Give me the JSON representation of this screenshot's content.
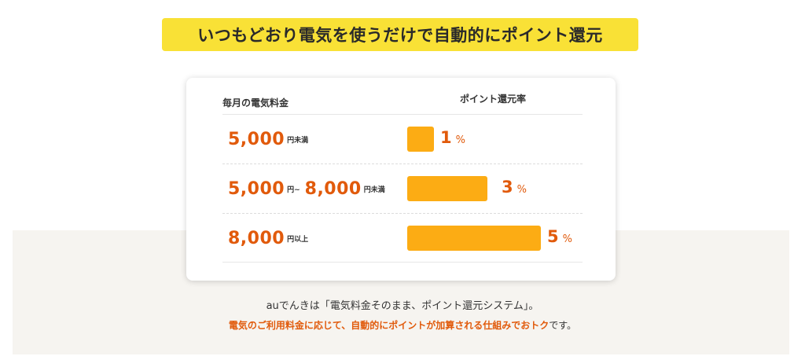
{
  "headline": "いつもどおり電気を使うだけで自動的にポイント還元",
  "table": {
    "col_fee": "毎月の電気料金",
    "col_rate": "ポイント還元率",
    "rows": [
      {
        "amount_a": "5,000",
        "unit_a": "円未満",
        "sep": "",
        "amount_b": "",
        "unit_b": "",
        "rate": "1",
        "pct": "%",
        "rate_value": 1
      },
      {
        "amount_a": "5,000",
        "unit_a": "円~",
        "sep": "",
        "amount_b": "8,000",
        "unit_b": "円未満",
        "rate": "3",
        "pct": "%",
        "rate_value": 3
      },
      {
        "amount_a": "8,000",
        "unit_a": "円以上",
        "sep": "",
        "amount_b": "",
        "unit_b": "",
        "rate": "5",
        "pct": "%",
        "rate_value": 5
      }
    ]
  },
  "description": {
    "line1": "auでんきは「電気料金そのまま、ポイント還元システム」。",
    "line2_highlight": "電気のご利用料金に応じて、自動的にポイントが加算される仕組みでおトク",
    "line2_rest": "です。"
  },
  "colors": {
    "headline_bg": "#f9e136",
    "accent_orange": "#e15a0b",
    "bar": "#fcac14",
    "band_bg": "#f6f4f0"
  }
}
